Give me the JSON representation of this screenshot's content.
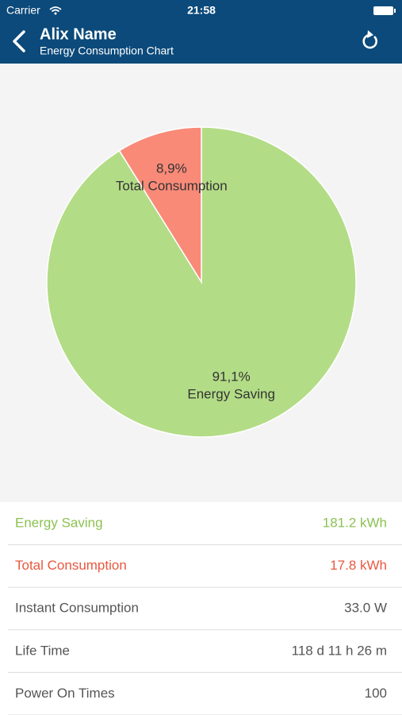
{
  "status_bar": {
    "carrier": "Carrier",
    "time": "21:58"
  },
  "header": {
    "title": "Alix Name",
    "subtitle": "Energy Consumption Chart"
  },
  "chart_data": {
    "type": "pie",
    "categories": [
      "Energy Saving",
      "Total Consumption"
    ],
    "values": [
      91.1,
      8.9
    ],
    "value_labels": [
      "91,1%",
      "8,9%"
    ],
    "colors": [
      "#b3dc86",
      "#f98a78"
    ]
  },
  "table": {
    "rows": [
      [
        "Energy Saving",
        "181.2 kWh"
      ],
      [
        "Total Consumption",
        "17.8 kWh"
      ],
      [
        "Instant Consumption",
        "33.0 W"
      ],
      [
        "Life Time",
        "118 d 11 h 26 m"
      ],
      [
        "Power On Times",
        "100"
      ]
    ]
  }
}
